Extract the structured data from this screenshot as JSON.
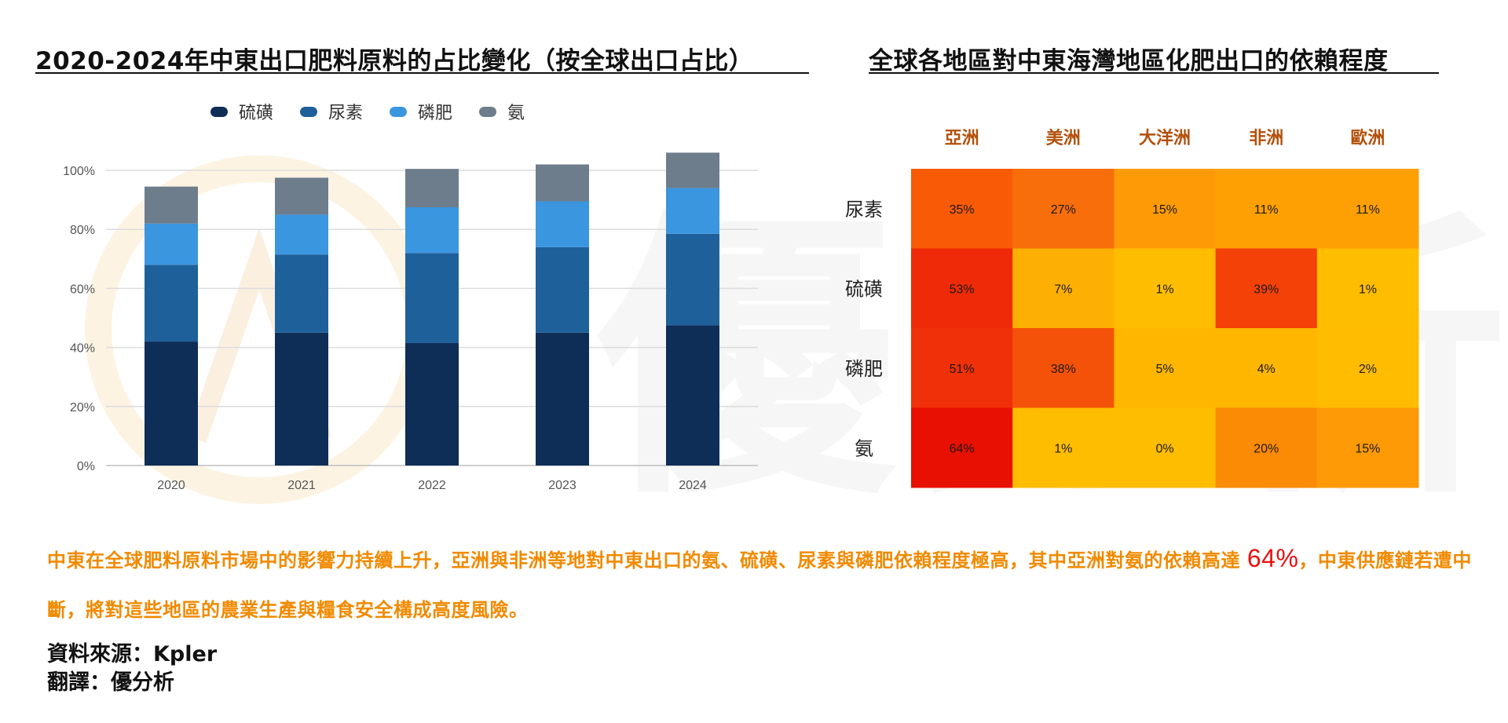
{
  "left_title": "2020-2024年中東出口肥料原料的占比變化（按全球出口占比）",
  "right_title": "全球各地區對中東海灣地區化肥出口的依賴程度",
  "summary": {
    "part1": "中東在全球肥料原料市場中的影響力持續上升，亞洲與非洲等地對中東出口的氨、硫磺、尿素與磷肥依賴程度極高，其中亞洲對氨的依賴高達 ",
    "highlight": "64%",
    "part2": "，中東供應鏈若遭中斷，將對這些地區的農業生產與糧食安全構成高度風險。"
  },
  "source_line": "資料來源：Kpler",
  "translation_line": "翻譯：優分析",
  "colors": {
    "series": [
      "#0e2d57",
      "#1e609a",
      "#3b96e0",
      "#6e7d8c"
    ],
    "summary_text": "#f08a00",
    "highlight": "#e81010",
    "category_label": "#b3500a"
  },
  "chart_data": [
    {
      "type": "bar",
      "stacked": true,
      "categories": [
        "2020",
        "2021",
        "2022",
        "2023",
        "2024"
      ],
      "series": [
        {
          "name": "硫磺",
          "values": [
            42,
            45,
            41.5,
            45,
            47.5
          ]
        },
        {
          "name": "尿素",
          "values": [
            26,
            26.5,
            30.5,
            29,
            31
          ]
        },
        {
          "name": "磷肥",
          "values": [
            14,
            13.5,
            15.5,
            15.5,
            15.5
          ]
        },
        {
          "name": "氨",
          "values": [
            12.5,
            12.5,
            13,
            12.5,
            12
          ]
        }
      ],
      "ylim": [
        0,
        100
      ],
      "yticks": [
        "0%",
        "20%",
        "40%",
        "60%",
        "80%",
        "100%"
      ],
      "grid": true,
      "legend_position": "top"
    },
    {
      "type": "heatmap",
      "columns": [
        "亞洲",
        "美洲",
        "大洋洲",
        "非洲",
        "歐洲"
      ],
      "rows": [
        "尿素",
        "硫磺",
        "磷肥",
        "氨"
      ],
      "values": [
        [
          35,
          27,
          15,
          11,
          11
        ],
        [
          53,
          7,
          1,
          39,
          1
        ],
        [
          51,
          38,
          5,
          4,
          2
        ],
        [
          64,
          1,
          0,
          20,
          15
        ]
      ],
      "labels": [
        [
          "35%",
          "27%",
          "15%",
          "11%",
          "11%"
        ],
        [
          "53%",
          "7%",
          "1%",
          "39%",
          "1%"
        ],
        [
          "51%",
          "38%",
          "5%",
          "4%",
          "2%"
        ],
        [
          "64%",
          "1%",
          "0%",
          "20%",
          "15%"
        ]
      ],
      "cell_colors": [
        [
          "#f85a06",
          "#f76e0a",
          "#fe9a06",
          "#fea003",
          "#fea003"
        ],
        [
          "#ef2a08",
          "#feaf03",
          "#ffbd00",
          "#f44108",
          "#ffbd00"
        ],
        [
          "#f03008",
          "#f45208",
          "#ffb600",
          "#ffb600",
          "#ffbc00"
        ],
        [
          "#e81002",
          "#ffbd00",
          "#ffbd00",
          "#fb8a05",
          "#fe9a06"
        ]
      ]
    }
  ]
}
